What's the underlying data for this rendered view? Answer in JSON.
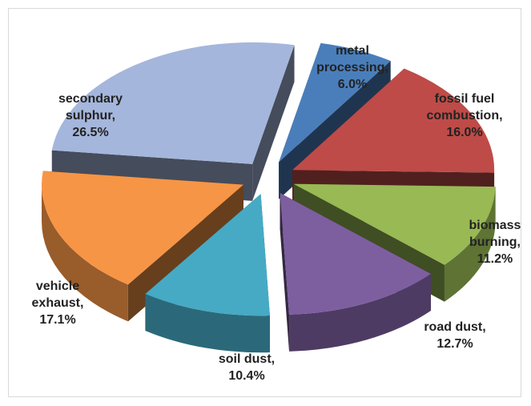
{
  "chart_data": {
    "type": "pie",
    "style": "3d-exploded",
    "slices": [
      {
        "label": "metal processing",
        "value": 6.0,
        "text": [
          "metal",
          "processing,",
          "6.0%"
        ],
        "color": "#4a7ebb"
      },
      {
        "label": "fossil fuel combustion",
        "value": 16.0,
        "text": [
          "fossil fuel",
          "combustion,",
          "16.0%"
        ],
        "color": "#be4b48"
      },
      {
        "label": "biomass burning",
        "value": 11.2,
        "text": [
          "biomass",
          "burning,",
          "11.2%"
        ],
        "color": "#98b954"
      },
      {
        "label": "road dust",
        "value": 12.7,
        "text": [
          "road dust,",
          "12.7%"
        ],
        "color": "#7d5fa0"
      },
      {
        "label": "soil dust",
        "value": 10.4,
        "text": [
          "soil dust,",
          "10.4%"
        ],
        "color": "#46aac5"
      },
      {
        "label": "vehicle exhaust",
        "value": 17.1,
        "text": [
          "vehicle",
          "exhaust,",
          "17.1%"
        ],
        "color": "#f69545"
      },
      {
        "label": "secondary sulphur",
        "value": 26.5,
        "text": [
          "secondary",
          "sulphur,",
          "26.5%"
        ],
        "color": "#a5b6dc"
      }
    ],
    "title": "",
    "legend": "none"
  }
}
